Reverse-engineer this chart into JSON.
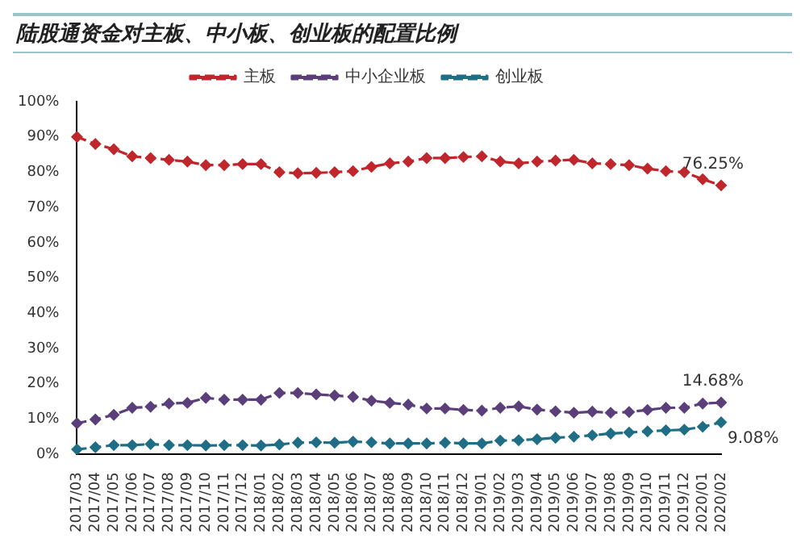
{
  "chart_data": {
    "type": "line",
    "title": "陆股通资金对主板、中小板、创业板的配置比例",
    "categories": [
      "2017/03",
      "2017/04",
      "2017/05",
      "2017/06",
      "2017/07",
      "2017/08",
      "2017/09",
      "2017/10",
      "2017/11",
      "2017/12",
      "2018/01",
      "2018/02",
      "2018/03",
      "2018/04",
      "2018/05",
      "2018/06",
      "2018/07",
      "2018/08",
      "2018/09",
      "2018/10",
      "2018/11",
      "2018/12",
      "2019/01",
      "2019/02",
      "2019/03",
      "2019/04",
      "2019/05",
      "2019/06",
      "2019/07",
      "2019/08",
      "2019/09",
      "2019/10",
      "2019/11",
      "2019/12",
      "2020/01",
      "2020/02"
    ],
    "series": [
      {
        "name": "主板",
        "color": "#c0272d",
        "values": [
          90,
          88,
          86.5,
          84.5,
          84,
          83.5,
          83,
          82,
          82,
          82.3,
          82.3,
          80,
          79.7,
          79.8,
          80,
          80.3,
          81.5,
          82.5,
          83,
          84,
          84,
          84.3,
          84.5,
          83,
          82.5,
          83,
          83.3,
          83.5,
          82.5,
          82.3,
          82,
          81,
          80.3,
          80,
          78,
          76.25
        ],
        "value_labels": [
          null,
          null,
          null,
          null,
          null,
          null,
          null,
          null,
          null,
          null,
          null,
          null,
          null,
          null,
          null,
          null,
          null,
          null,
          null,
          null,
          null,
          null,
          null,
          null,
          null,
          null,
          null,
          null,
          null,
          null,
          null,
          null,
          null,
          null,
          null,
          "76.25%"
        ]
      },
      {
        "name": "中小企业板",
        "color": "#5b3f7a",
        "values": [
          8.8,
          9.9,
          11.2,
          13.2,
          13.5,
          14.4,
          14.6,
          16,
          15.5,
          15.5,
          15.5,
          17.4,
          17.4,
          17,
          16.7,
          16.3,
          15.2,
          14.6,
          14.1,
          13,
          13,
          12.6,
          12.4,
          13.2,
          13.6,
          12.7,
          12.2,
          11.8,
          12.1,
          11.8,
          12,
          12.6,
          13.2,
          13.2,
          14.4,
          14.68
        ],
        "value_labels": [
          null,
          null,
          null,
          null,
          null,
          null,
          null,
          null,
          null,
          null,
          null,
          null,
          null,
          null,
          null,
          null,
          null,
          null,
          null,
          null,
          null,
          null,
          null,
          null,
          null,
          null,
          null,
          null,
          null,
          null,
          null,
          null,
          null,
          null,
          null,
          "14.68%"
        ]
      },
      {
        "name": "创业板",
        "color": "#1f6e86",
        "values": [
          1.4,
          2,
          2.6,
          2.6,
          2.9,
          2.6,
          2.6,
          2.5,
          2.6,
          2.6,
          2.5,
          2.8,
          3.3,
          3.4,
          3.3,
          3.6,
          3.4,
          3.1,
          3.1,
          3.1,
          3.3,
          3.1,
          3.1,
          3.9,
          4,
          4.3,
          4.7,
          5,
          5.4,
          5.9,
          6.2,
          6.5,
          6.8,
          7,
          7.8,
          9.08
        ],
        "value_labels": [
          null,
          null,
          null,
          null,
          null,
          null,
          null,
          null,
          null,
          null,
          null,
          null,
          null,
          null,
          null,
          null,
          null,
          null,
          null,
          null,
          null,
          null,
          null,
          null,
          null,
          null,
          null,
          null,
          null,
          null,
          null,
          null,
          null,
          null,
          null,
          "9.08%"
        ]
      }
    ],
    "ylim": [
      0,
      100
    ],
    "yticks": [
      {
        "value": 0,
        "label": "0%"
      },
      {
        "value": 10,
        "label": "10%"
      },
      {
        "value": 20,
        "label": "20%"
      },
      {
        "value": 30,
        "label": "30%"
      },
      {
        "value": 40,
        "label": "40%"
      },
      {
        "value": 50,
        "label": "50%"
      },
      {
        "value": 60,
        "label": "60%"
      },
      {
        "value": 70,
        "label": "70%"
      },
      {
        "value": 80,
        "label": "80%"
      },
      {
        "value": 90,
        "label": "90%"
      },
      {
        "value": 100,
        "label": "100%"
      }
    ],
    "grid": false,
    "legend": "top",
    "marker": "diamond",
    "line_style": "dashed"
  }
}
